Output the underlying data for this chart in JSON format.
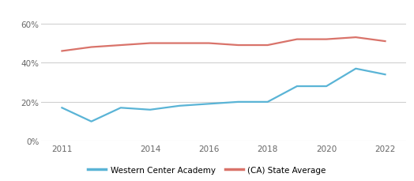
{
  "years": [
    2011,
    2012,
    2013,
    2014,
    2015,
    2016,
    2017,
    2018,
    2019,
    2020,
    2021,
    2022
  ],
  "western_center": [
    0.17,
    0.1,
    0.17,
    0.16,
    0.18,
    0.19,
    0.2,
    0.2,
    0.28,
    0.28,
    0.37,
    0.34
  ],
  "ca_state": [
    0.46,
    0.48,
    0.49,
    0.5,
    0.5,
    0.5,
    0.49,
    0.49,
    0.52,
    0.52,
    0.53,
    0.51
  ],
  "western_color": "#5ab4d6",
  "ca_color": "#d9736a",
  "legend_labels": [
    "Western Center Academy",
    "(CA) State Average"
  ],
  "ylim": [
    0,
    0.65
  ],
  "yticks": [
    0.0,
    0.2,
    0.4,
    0.6
  ],
  "ytick_labels": [
    "0%",
    "20%",
    "40%",
    "60%"
  ],
  "xticks": [
    2011,
    2014,
    2016,
    2018,
    2020,
    2022
  ],
  "xtick_labels": [
    "2011",
    "2014",
    "2016",
    "2018",
    "2020",
    "2022"
  ],
  "background_color": "#ffffff",
  "grid_color": "#d0d0d0",
  "line_width": 1.6
}
